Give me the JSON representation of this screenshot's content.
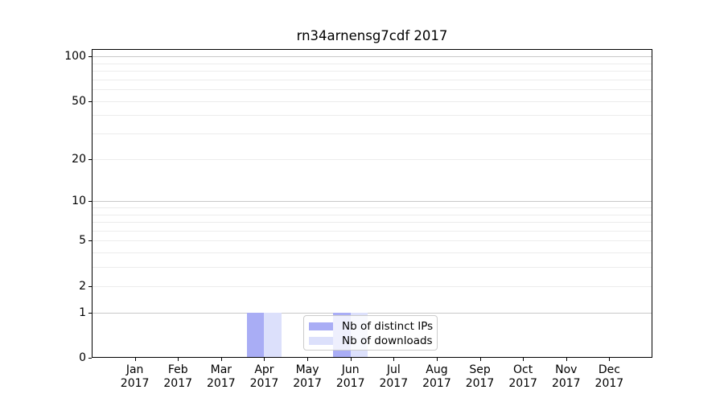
{
  "figure": {
    "title": "rn34arnensg7cdf 2017"
  },
  "chart_data": {
    "type": "bar",
    "title": "rn34arnensg7cdf 2017",
    "categories": [
      "Jan 2017",
      "Feb 2017",
      "Mar 2017",
      "Apr 2017",
      "May 2017",
      "Jun 2017",
      "Jul 2017",
      "Aug 2017",
      "Sep 2017",
      "Oct 2017",
      "Nov 2017",
      "Dec 2017"
    ],
    "series": [
      {
        "name": "Nb of distinct IPs",
        "color": "#a9adf5",
        "values": [
          0,
          0,
          0,
          1,
          0,
          1,
          0,
          0,
          0,
          0,
          0,
          0
        ]
      },
      {
        "name": "Nb of downloads",
        "color": "#dce0fb",
        "values": [
          0,
          0,
          0,
          1,
          0,
          1,
          0,
          0,
          0,
          0,
          0,
          0
        ]
      }
    ],
    "xlabel": "",
    "ylabel": "",
    "yscale": "log1p",
    "ylim": [
      0,
      112
    ],
    "y_ticks": [
      0,
      1,
      2,
      5,
      10,
      20,
      50,
      100
    ],
    "y_gridlines_major": [
      1,
      10,
      100
    ],
    "y_gridlines_minor": [
      2,
      3,
      4,
      5,
      6,
      7,
      8,
      9,
      20,
      30,
      40,
      50,
      60,
      70,
      80,
      90
    ],
    "grid": true,
    "legend_position": "lower center-left"
  },
  "colors": {
    "bar_distinct_ips": "#a9adf5",
    "bar_downloads": "#dce0fb",
    "grid_minor": "#ececec",
    "grid_major": "#c9c9c9",
    "axis": "#000000",
    "text": "#000000",
    "legend_border": "#cccccc",
    "legend_background": "rgba(255,255,255,0.8)"
  }
}
